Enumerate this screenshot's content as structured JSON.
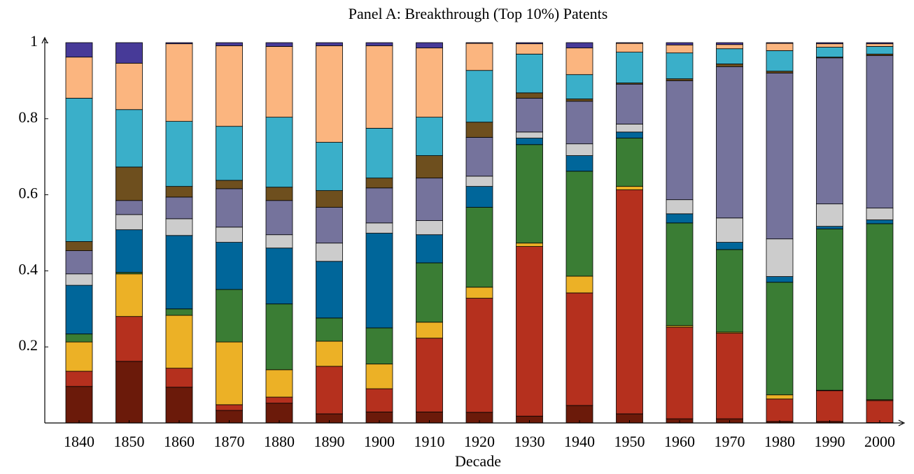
{
  "chart_data": {
    "type": "stacked-bar",
    "title": "Panel A: Breakthrough (Top 10%) Patents",
    "x_label": "Decade",
    "categories": [
      "1840",
      "1850",
      "1860",
      "1870",
      "1880",
      "1890",
      "1900",
      "1910",
      "1920",
      "1930",
      "1940",
      "1950",
      "1960",
      "1970",
      "1980",
      "1990",
      "2000"
    ],
    "ylim": [
      0,
      1
    ],
    "yticks": [
      0.2,
      0.4,
      0.6,
      0.8,
      1
    ],
    "series": [
      {
        "color": "#6b1a0a",
        "values": [
          0.096,
          0.162,
          0.094,
          0.033,
          0.052,
          0.024,
          0.029,
          0.029,
          0.028,
          0.018,
          0.046,
          0.024,
          0.011,
          0.011,
          0.004,
          0.004,
          0.001
        ]
      },
      {
        "color": "#b5301e",
        "values": [
          0.04,
          0.118,
          0.05,
          0.015,
          0.016,
          0.125,
          0.061,
          0.194,
          0.3,
          0.446,
          0.296,
          0.589,
          0.241,
          0.225,
          0.059,
          0.081,
          0.058
        ]
      },
      {
        "color": "#ecb126",
        "values": [
          0.077,
          0.112,
          0.139,
          0.165,
          0.072,
          0.066,
          0.065,
          0.042,
          0.029,
          0.009,
          0.044,
          0.009,
          0.004,
          0.003,
          0.011,
          0.001,
          0.002
        ]
      },
      {
        "color": "#3a7d34",
        "values": [
          0.021,
          0.004,
          0.017,
          0.138,
          0.173,
          0.061,
          0.095,
          0.156,
          0.21,
          0.259,
          0.276,
          0.127,
          0.27,
          0.217,
          0.296,
          0.424,
          0.463
        ]
      },
      {
        "color": "#00669a",
        "values": [
          0.128,
          0.112,
          0.193,
          0.124,
          0.147,
          0.149,
          0.249,
          0.074,
          0.055,
          0.017,
          0.041,
          0.016,
          0.024,
          0.019,
          0.015,
          0.007,
          0.01
        ]
      },
      {
        "color": "#cccccc",
        "values": [
          0.03,
          0.04,
          0.044,
          0.04,
          0.035,
          0.048,
          0.027,
          0.037,
          0.027,
          0.016,
          0.031,
          0.021,
          0.037,
          0.064,
          0.099,
          0.059,
          0.031
        ]
      },
      {
        "color": "#75739c",
        "values": [
          0.061,
          0.037,
          0.057,
          0.101,
          0.09,
          0.094,
          0.092,
          0.112,
          0.102,
          0.089,
          0.112,
          0.105,
          0.313,
          0.398,
          0.436,
          0.384,
          0.401
        ]
      },
      {
        "color": "#6e4f1e",
        "values": [
          0.024,
          0.088,
          0.028,
          0.022,
          0.035,
          0.044,
          0.026,
          0.059,
          0.04,
          0.014,
          0.006,
          0.003,
          0.005,
          0.007,
          0.005,
          0.002,
          0.004
        ]
      },
      {
        "color": "#3aafc9",
        "values": [
          0.377,
          0.151,
          0.171,
          0.142,
          0.184,
          0.127,
          0.131,
          0.101,
          0.136,
          0.102,
          0.064,
          0.081,
          0.068,
          0.04,
          0.054,
          0.026,
          0.02
        ]
      },
      {
        "color": "#fbb57f",
        "values": [
          0.108,
          0.122,
          0.204,
          0.212,
          0.186,
          0.254,
          0.217,
          0.182,
          0.071,
          0.027,
          0.07,
          0.023,
          0.021,
          0.011,
          0.019,
          0.009,
          0.007
        ]
      },
      {
        "color": "#473a98",
        "values": [
          0.038,
          0.054,
          0.003,
          0.008,
          0.01,
          0.008,
          0.008,
          0.014,
          0.002,
          0.003,
          0.014,
          0.002,
          0.006,
          0.005,
          0.002,
          0.003,
          0.003
        ]
      }
    ]
  }
}
